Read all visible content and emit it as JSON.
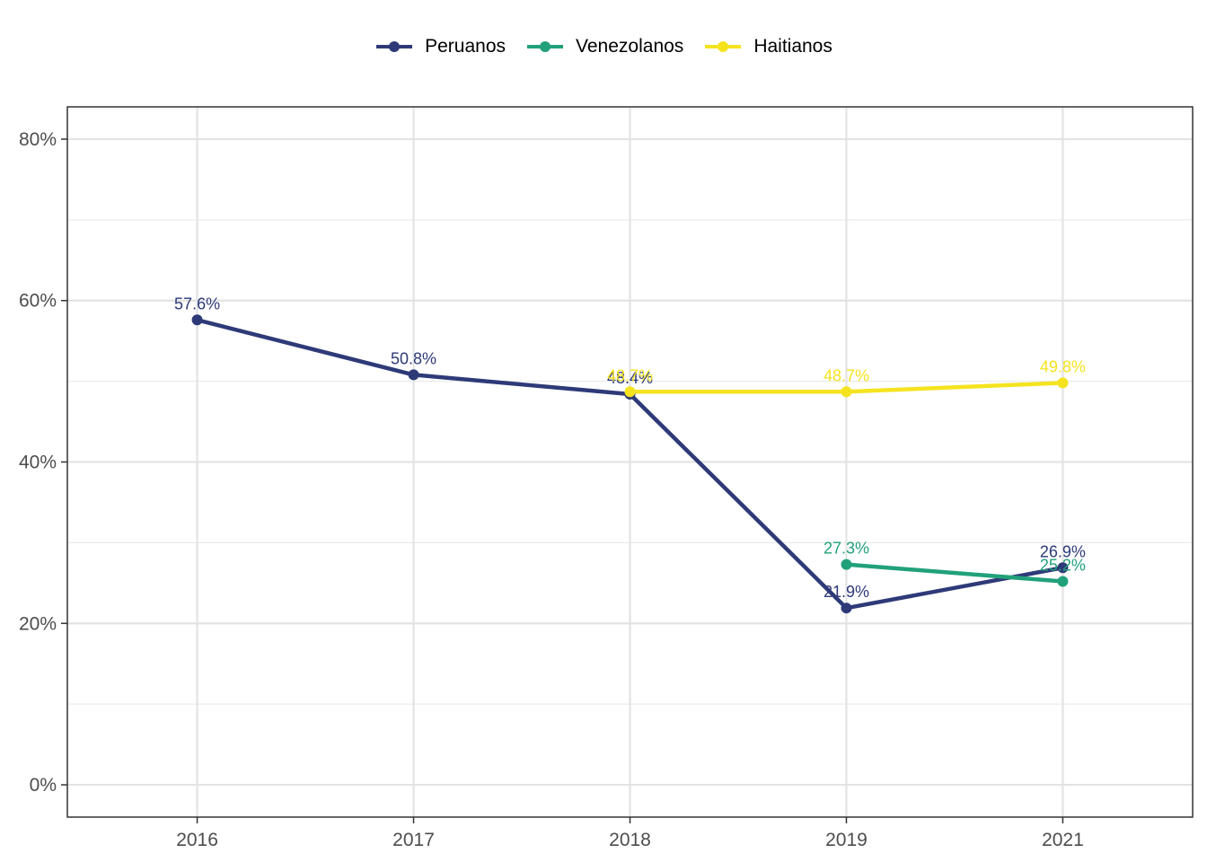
{
  "chart_data": {
    "type": "line",
    "title": "",
    "xlabel": "",
    "ylabel": "",
    "categories": [
      "2016",
      "2017",
      "2018",
      "2019",
      "2021"
    ],
    "ylim": [
      -0.04,
      0.84
    ],
    "yticks": [
      0,
      0.2,
      0.4,
      0.6,
      0.8
    ],
    "yticklabels": [
      "0%",
      "20%",
      "40%",
      "60%",
      "80%"
    ],
    "grid": true,
    "legend_position": "top",
    "series": [
      {
        "name": "Peruanos",
        "color": "#2e3a78",
        "values": [
          0.576,
          0.508,
          0.484,
          0.219,
          0.269
        ],
        "labels": [
          "57.6%",
          "50.8%",
          "48.4%",
          "21.9%",
          "26.9%"
        ]
      },
      {
        "name": "Venezolanos",
        "color": "#21a17a",
        "values": [
          null,
          null,
          null,
          0.273,
          0.252
        ],
        "labels": [
          null,
          null,
          null,
          "27.3%",
          "25.2%"
        ]
      },
      {
        "name": "Haitianos",
        "color": "#f5e31f",
        "values": [
          null,
          null,
          0.487,
          0.487,
          0.498
        ],
        "labels": [
          null,
          null,
          "48.7%",
          "48.7%",
          "49.8%"
        ]
      }
    ]
  }
}
